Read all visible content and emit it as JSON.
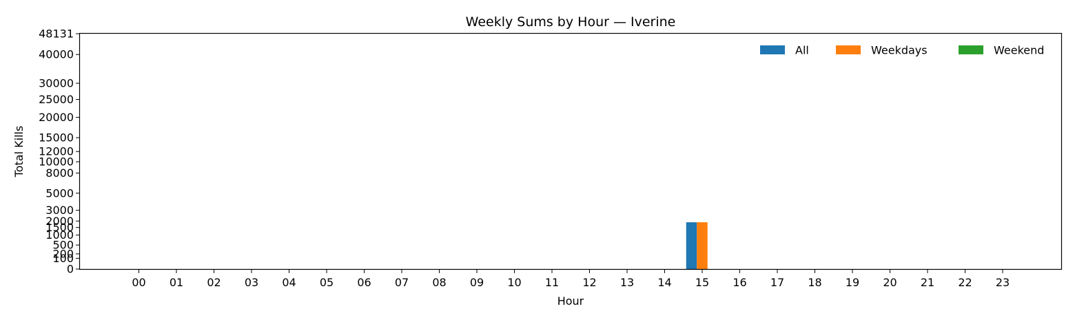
{
  "chart_data": {
    "type": "bar",
    "title": "Weekly Sums by Hour — Iverine",
    "xlabel": "Hour",
    "ylabel": "Total Kills",
    "categories": [
      "00",
      "01",
      "02",
      "03",
      "04",
      "05",
      "06",
      "07",
      "08",
      "09",
      "10",
      "11",
      "12",
      "13",
      "14",
      "15",
      "16",
      "17",
      "18",
      "19",
      "20",
      "21",
      "22",
      "23"
    ],
    "series": [
      {
        "name": "All",
        "color": "#1f77b4",
        "values": [
          0,
          0,
          0,
          0,
          0,
          0,
          0,
          0,
          0,
          0,
          0,
          0,
          0,
          0,
          0,
          1900,
          0,
          0,
          0,
          0,
          0,
          0,
          0,
          0
        ]
      },
      {
        "name": "Weekdays",
        "color": "#ff7f0e",
        "values": [
          0,
          0,
          0,
          0,
          0,
          0,
          0,
          0,
          0,
          0,
          0,
          0,
          0,
          0,
          0,
          1900,
          0,
          0,
          0,
          0,
          0,
          0,
          0,
          0
        ]
      },
      {
        "name": "Weekend",
        "color": "#2ca02c",
        "values": [
          0,
          0,
          0,
          0,
          0,
          0,
          0,
          0,
          0,
          0,
          0,
          0,
          0,
          0,
          0,
          0,
          0,
          0,
          0,
          0,
          0,
          0,
          0,
          0
        ]
      }
    ],
    "yscale": "sqrt",
    "ylim": [
      0,
      48131
    ],
    "yticks": [
      0,
      100,
      200,
      500,
      1000,
      1500,
      2000,
      3000,
      5000,
      8000,
      10000,
      12000,
      15000,
      20000,
      25000,
      30000,
      40000,
      48131
    ],
    "ytick_labels": [
      "0",
      "100",
      "200",
      "500",
      "1000",
      "1500",
      "2000",
      "3000",
      "5000",
      "8000",
      "10000",
      "12000",
      "15000",
      "20000",
      "25000",
      "30000",
      "40000",
      "48131"
    ],
    "legend": "top-right",
    "grid": false
  }
}
